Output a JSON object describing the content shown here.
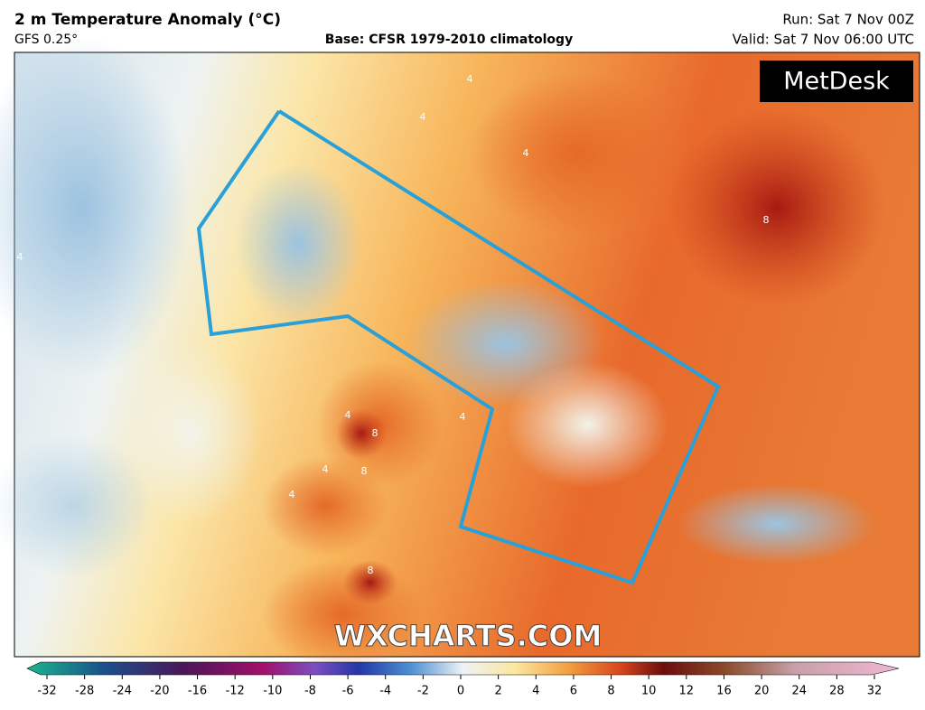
{
  "header": {
    "title": "2 m Temperature Anomaly (°C)",
    "model": "GFS 0.25°",
    "base": "Base: CFSR 1979-2010 climatology",
    "run": "Run: Sat 7 Nov 00Z",
    "valid": "Valid: Sat 7 Nov 06:00 UTC"
  },
  "map": {
    "logo": "MetDesk",
    "watermark": "WXCHARTS.COM",
    "contour_labels": [
      4,
      4,
      4,
      4,
      8,
      8,
      8,
      4,
      4,
      8,
      4,
      4
    ]
  },
  "colorbar": {
    "ticks": [
      -32,
      -28,
      -24,
      -20,
      -16,
      -12,
      -10,
      -8,
      -6,
      -4,
      -2,
      0,
      2,
      4,
      6,
      8,
      10,
      12,
      16,
      20,
      24,
      28,
      32
    ]
  }
}
